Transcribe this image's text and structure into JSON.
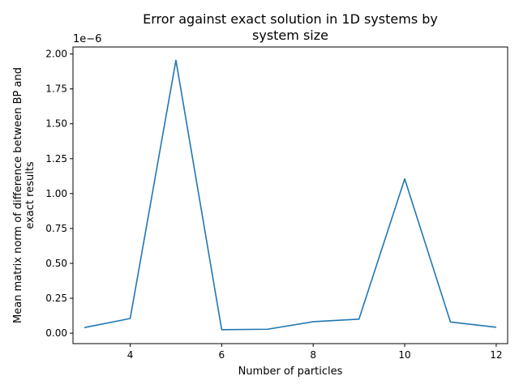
{
  "chart_data": {
    "type": "line",
    "title": "Error against exact solution in 1D systems by\nsystem size",
    "title_lines": [
      "Error against exact solution in 1D systems by",
      "system size"
    ],
    "xlabel": "Number of particles",
    "ylabel": "Mean matrix norm of difference between BP and\nexact results",
    "ylabel_lines": [
      "Mean matrix norm of difference between BP and",
      "exact results"
    ],
    "y_offset_text": "1e−6",
    "xlim": [
      2.75,
      12.25
    ],
    "ylim": [
      -0.075,
      2.05
    ],
    "x_ticks": [
      4,
      6,
      8,
      10,
      12
    ],
    "x_tick_labels": [
      "4",
      "6",
      "8",
      "10",
      "12"
    ],
    "y_ticks": [
      0.0,
      0.25,
      0.5,
      0.75,
      1.0,
      1.25,
      1.5,
      1.75,
      2.0
    ],
    "y_tick_labels": [
      "0.00",
      "0.25",
      "0.50",
      "0.75",
      "1.00",
      "1.25",
      "1.50",
      "1.75",
      "2.00"
    ],
    "grid": false,
    "color": "#1f77b4",
    "series": [
      {
        "x": [
          3,
          4,
          5,
          6,
          7,
          8,
          9,
          10,
          11,
          12
        ],
        "y": [
          0.04,
          0.105,
          1.955,
          0.025,
          0.028,
          0.082,
          0.1,
          1.105,
          0.08,
          0.042
        ]
      }
    ]
  }
}
